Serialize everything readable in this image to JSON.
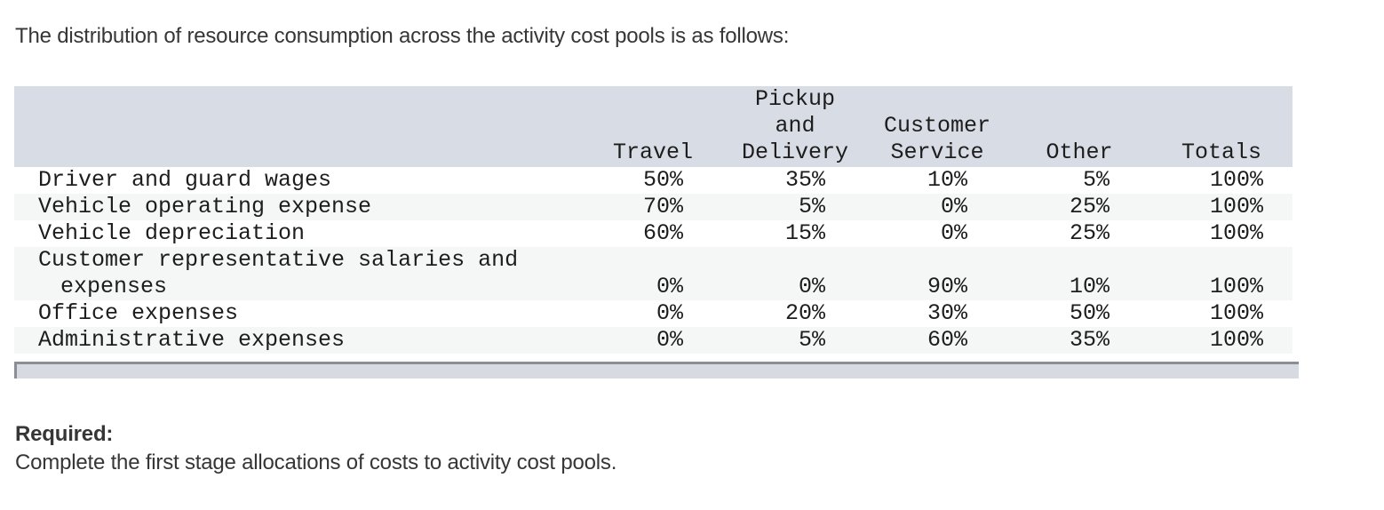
{
  "intro_text": "The distribution of resource consumption across the activity cost pools is as follows:",
  "table": {
    "header": {
      "cols": [
        {
          "lines": []
        },
        {
          "lines": [
            "Travel"
          ]
        },
        {
          "lines": [
            "Pickup",
            "and",
            "Delivery"
          ]
        },
        {
          "lines": [
            "Customer",
            "Service"
          ]
        },
        {
          "lines": [
            "Other"
          ]
        },
        {
          "lines": [
            "Totals"
          ]
        }
      ]
    },
    "rows": [
      {
        "label_lines": [
          "Driver and guard wages"
        ],
        "values": [
          "50%",
          "35%",
          "10%",
          "5%",
          "100%"
        ]
      },
      {
        "label_lines": [
          "Vehicle operating expense"
        ],
        "values": [
          "70%",
          "5%",
          "0%",
          "25%",
          "100%"
        ]
      },
      {
        "label_lines": [
          "Vehicle depreciation"
        ],
        "values": [
          "60%",
          "15%",
          "0%",
          "25%",
          "100%"
        ]
      },
      {
        "label_lines": [
          "Customer representative salaries and",
          "expenses"
        ],
        "values": [
          "0%",
          "0%",
          "90%",
          "10%",
          "100%"
        ]
      },
      {
        "label_lines": [
          "Office expenses"
        ],
        "values": [
          "0%",
          "20%",
          "30%",
          "50%",
          "100%"
        ]
      },
      {
        "label_lines": [
          "Administrative expenses"
        ],
        "values": [
          "0%",
          "5%",
          "60%",
          "35%",
          "100%"
        ]
      }
    ]
  },
  "required": {
    "label": "Required:",
    "text": "Complete the first stage allocations of costs to activity cost pools."
  },
  "colors": {
    "page_bg": "#ffffff",
    "text": "#363636",
    "table_text": "#1d1d1d",
    "header_bg": "#d8dce4",
    "row_alt_bg": "#f5f6f6",
    "scroll_track": "#d7dae0",
    "scroll_edge": "#8b8e94"
  }
}
